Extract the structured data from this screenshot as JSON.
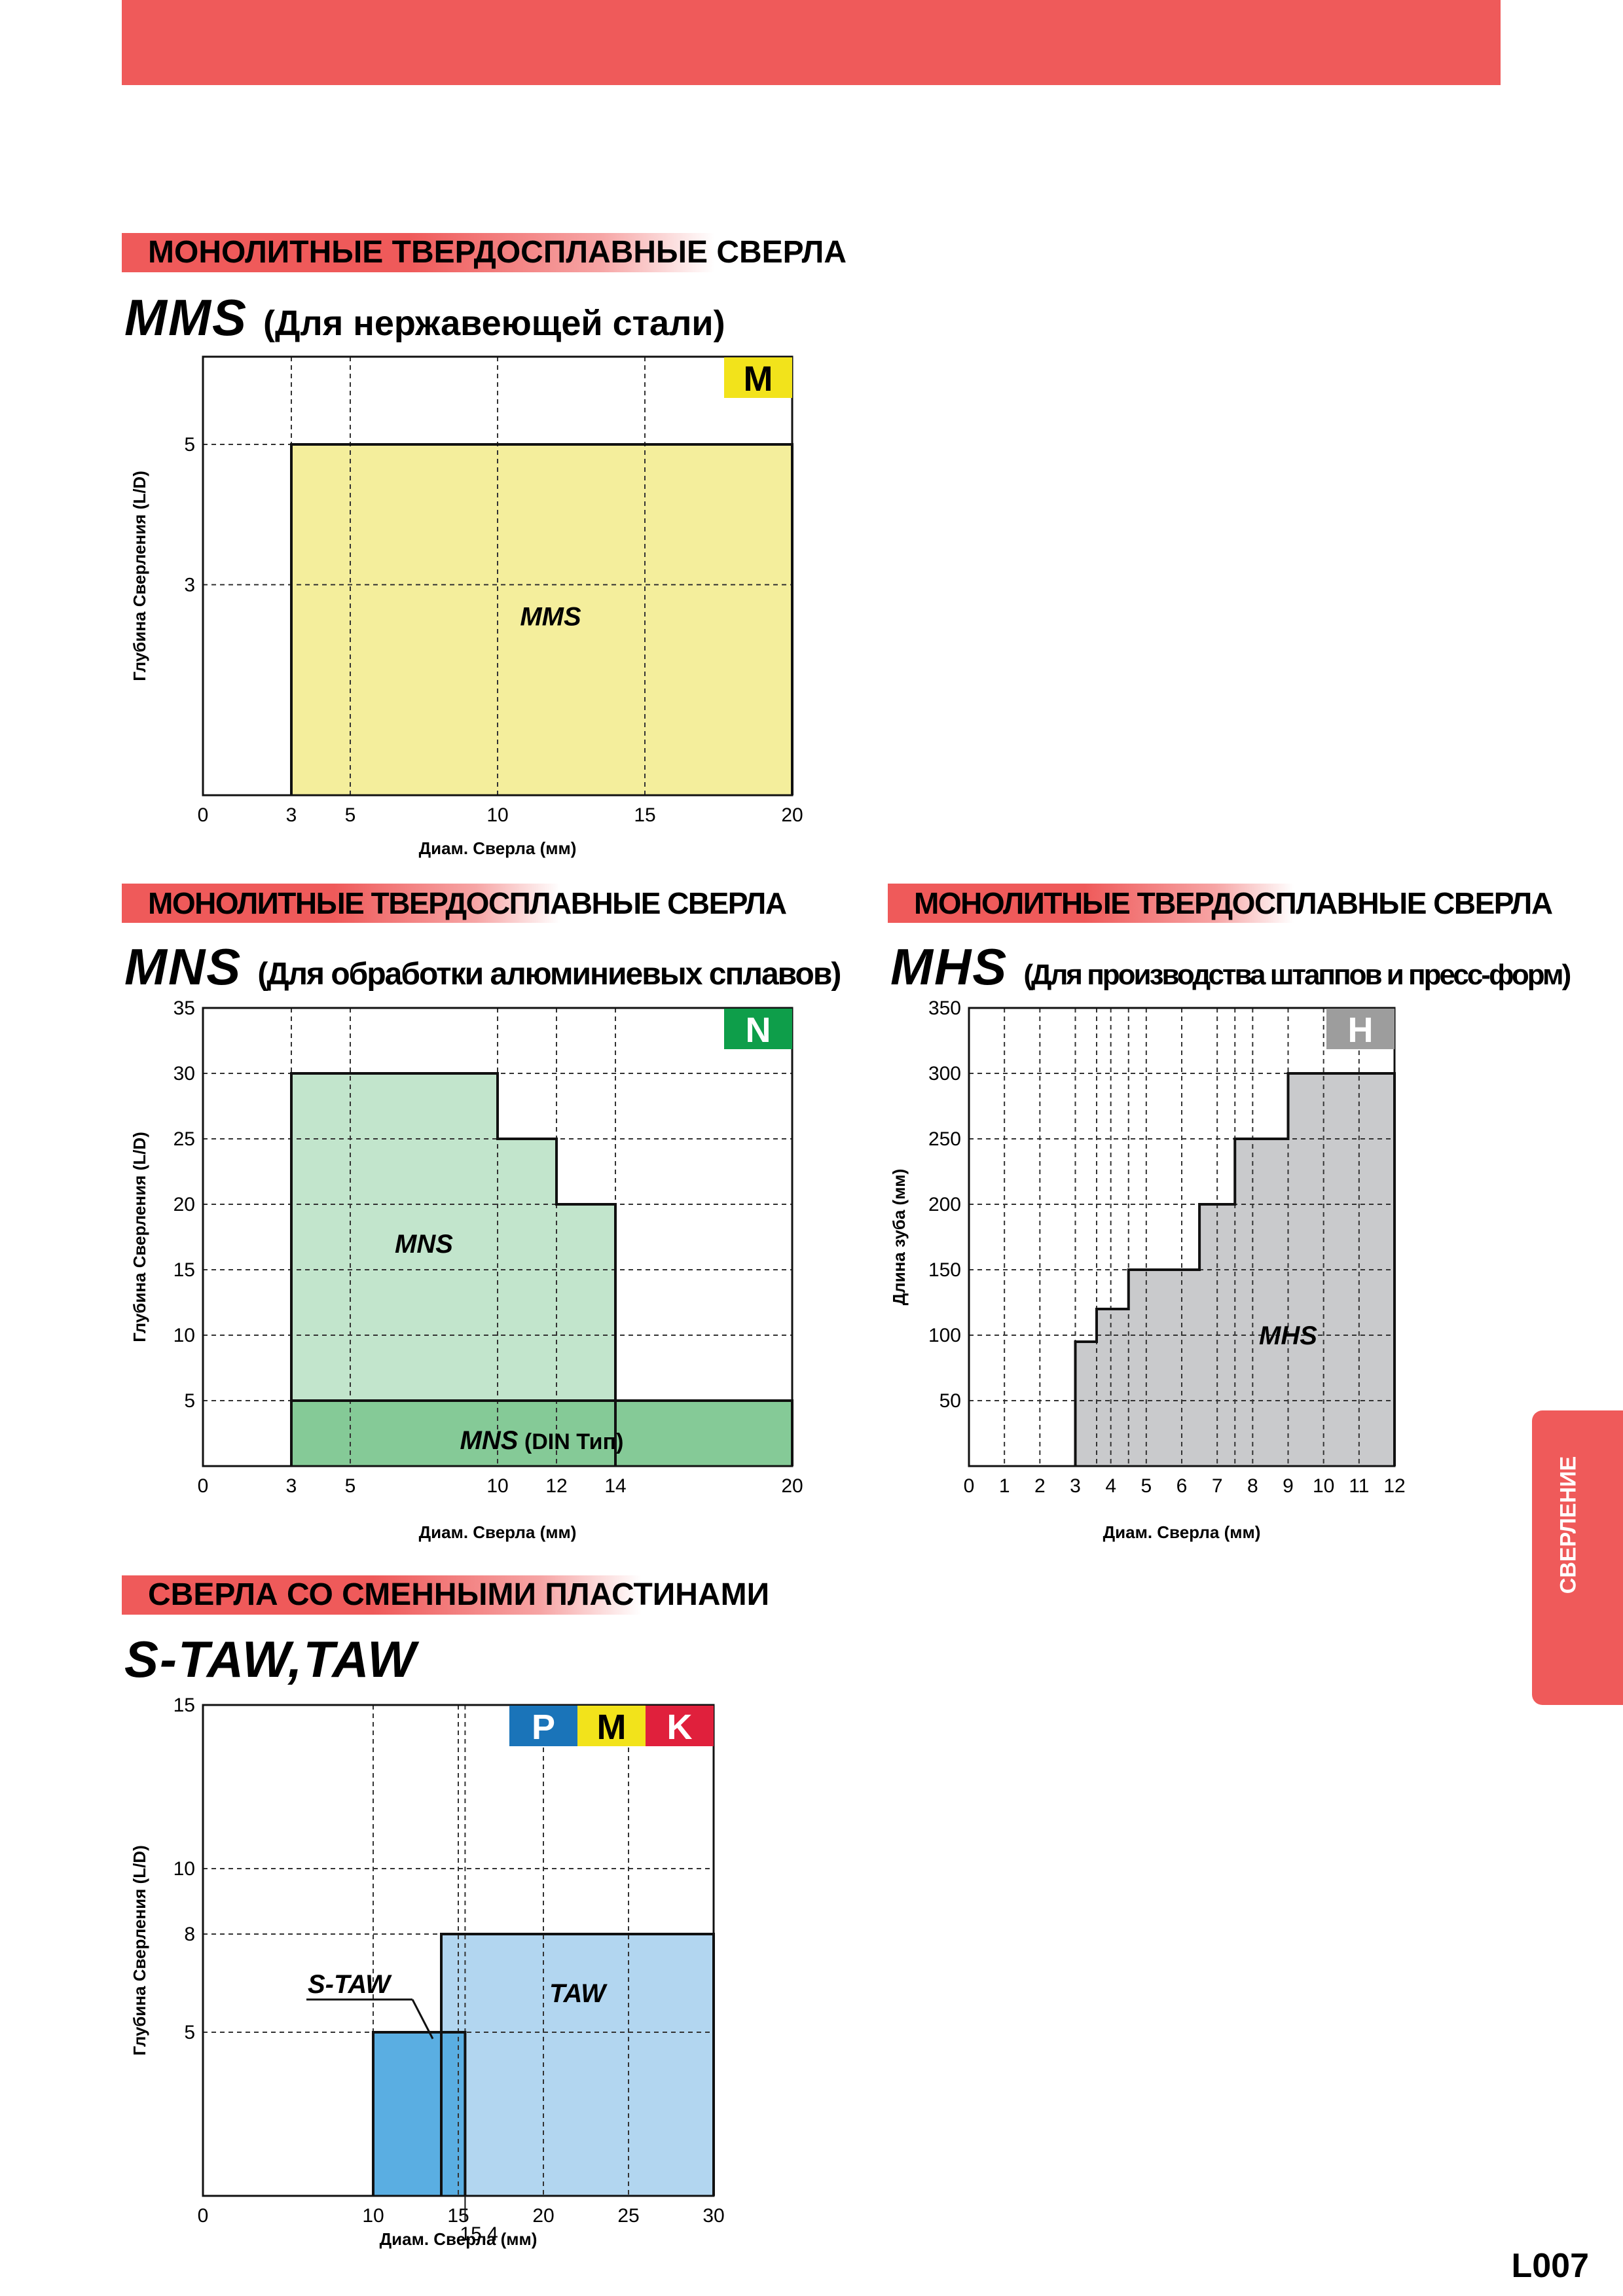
{
  "page": {
    "page_number": "L007",
    "side_tab": "СВЕРЛЕНИЕ"
  },
  "sections": {
    "mms": {
      "category": "МОНОЛИТНЫЕ ТВЕРДОСПЛАВНЫЕ СВЕРЛА",
      "name": "MMS",
      "subtitle": "(Для нержавеющей стали)"
    },
    "mns": {
      "category": "МОНОЛИТНЫЕ ТВЕРДОСПЛАВНЫЕ СВЕРЛА",
      "name": "MNS",
      "subtitle": "(Для обработки алюминиевых сплавов)"
    },
    "mhs": {
      "category": "МОНОЛИТНЫЕ ТВЕРДОСПЛАВНЫЕ СВЕРЛА",
      "name": "MHS",
      "subtitle": "(Для производства штаппов и пресс-форм)"
    },
    "taw": {
      "category": "СВЕРЛА СО СМЕННЫМИ ПЛАСТИНАМИ",
      "name": "S-TAW,TAW",
      "subtitle": ""
    }
  },
  "colors": {
    "banner": "#ef5a5a",
    "mms_fill": "#f4ee9c",
    "mns_fill": "#c2e5cc",
    "mns_din_fill": "#85ca97",
    "mhs_fill": "#c9cacc",
    "taw_fill": "#b2d6f0",
    "staw_fill": "#5aaee2",
    "badge_P": "#1a74b9",
    "badge_M": "#f2e31b",
    "badge_K": "#e0203c",
    "badge_N": "#0e9e4a",
    "badge_H": "#9d9d9d"
  },
  "chart_data": [
    {
      "id": "mms",
      "type": "area",
      "xlabel": "Диам. Сверла (мм)",
      "ylabel": "Глубина Сверления (L/D)",
      "xlim": [
        0,
        20
      ],
      "ylim": [
        0,
        6.25
      ],
      "x_ticks": [
        0,
        3,
        5,
        10,
        15,
        20
      ],
      "y_ticks": [
        3,
        5
      ],
      "badges": [
        {
          "label": "M",
          "color": "#f2e31b",
          "text_color": "#000000"
        }
      ],
      "series": [
        {
          "name": "MMS",
          "fill": "#f4ee9c",
          "points": [
            [
              3,
              0
            ],
            [
              3,
              5
            ],
            [
              20,
              5
            ],
            [
              20,
              0
            ]
          ],
          "label_at": [
            11.8,
            2.55
          ]
        }
      ]
    },
    {
      "id": "mns",
      "type": "area",
      "xlabel": "Диам. Сверла (мм)",
      "ylabel": "Глубина Сверления (L/D)",
      "xlim": [
        0,
        20
      ],
      "ylim": [
        0,
        35
      ],
      "x_ticks": [
        0,
        3,
        5,
        10,
        12,
        14,
        20
      ],
      "y_ticks": [
        5,
        10,
        15,
        20,
        25,
        30,
        35
      ],
      "badges": [
        {
          "label": "N",
          "color": "#0e9e4a",
          "text_color": "#ffffff"
        }
      ],
      "series": [
        {
          "name": "MNS",
          "fill": "#c2e5cc",
          "points": [
            [
              3,
              0
            ],
            [
              3,
              30
            ],
            [
              10,
              30
            ],
            [
              10,
              25
            ],
            [
              12,
              25
            ],
            [
              12,
              20
            ],
            [
              14,
              20
            ],
            [
              14,
              0
            ]
          ],
          "label_at": [
            7.5,
            17
          ]
        },
        {
          "name": "MNS",
          "suffix": "(DIN Тип)",
          "fill": "#85ca97",
          "points": [
            [
              3,
              0
            ],
            [
              3,
              5
            ],
            [
              20,
              5
            ],
            [
              20,
              0
            ]
          ],
          "label_at": [
            11.5,
            2
          ]
        }
      ]
    },
    {
      "id": "mhs",
      "type": "area",
      "xlabel": "Диам. Сверла (мм)",
      "ylabel": "Длина зуба (мм)",
      "xlim": [
        0,
        12
      ],
      "ylim": [
        0,
        350
      ],
      "x_ticks": [
        0,
        1,
        2,
        3,
        4,
        5,
        6,
        7,
        8,
        9,
        10,
        11,
        12
      ],
      "y_ticks": [
        50,
        100,
        150,
        200,
        250,
        300,
        350
      ],
      "x_grid_extra": [
        3.6,
        4.5,
        7.5
      ],
      "badges": [
        {
          "label": "H",
          "color": "#9d9d9d",
          "text_color": "#ffffff"
        }
      ],
      "series": [
        {
          "name": "MHS",
          "fill": "#c9cacc",
          "points": [
            [
              3,
              0
            ],
            [
              3,
              95
            ],
            [
              3.6,
              95
            ],
            [
              3.6,
              120
            ],
            [
              4.5,
              120
            ],
            [
              4.5,
              150
            ],
            [
              6.5,
              150
            ],
            [
              6.5,
              200
            ],
            [
              7.5,
              200
            ],
            [
              7.5,
              250
            ],
            [
              9,
              250
            ],
            [
              9,
              300
            ],
            [
              12,
              300
            ],
            [
              12,
              0
            ]
          ],
          "label_at": [
            9,
            100
          ]
        }
      ]
    },
    {
      "id": "taw",
      "type": "area",
      "xlabel": "Диам. Сверла (мм)",
      "ylabel": "Глубина Сверления (L/D)",
      "xlim": [
        0,
        30
      ],
      "ylim": [
        0,
        15
      ],
      "x_ticks": [
        0,
        10,
        15,
        20,
        25,
        30
      ],
      "y_ticks": [
        5,
        8,
        10,
        15
      ],
      "x_grid_extra": [
        15.4
      ],
      "x_ticks_extra": [
        15.4
      ],
      "badges": [
        {
          "label": "P",
          "color": "#1a74b9",
          "text_color": "#ffffff"
        },
        {
          "label": "M",
          "color": "#f2e31b",
          "text_color": "#000000"
        },
        {
          "label": "K",
          "color": "#e0203c",
          "text_color": "#ffffff"
        }
      ],
      "series": [
        {
          "name": "TAW",
          "fill": "#b2d6f0",
          "points": [
            [
              14,
              0
            ],
            [
              14,
              8
            ],
            [
              30,
              8
            ],
            [
              30,
              0
            ]
          ],
          "label_at": [
            22,
            6.2
          ]
        },
        {
          "name": "S-TAW",
          "fill": "#5aaee2",
          "points": [
            [
              10,
              0
            ],
            [
              10,
              5
            ],
            [
              15.4,
              5
            ],
            [
              15.4,
              0
            ]
          ],
          "callout": true
        }
      ]
    }
  ]
}
